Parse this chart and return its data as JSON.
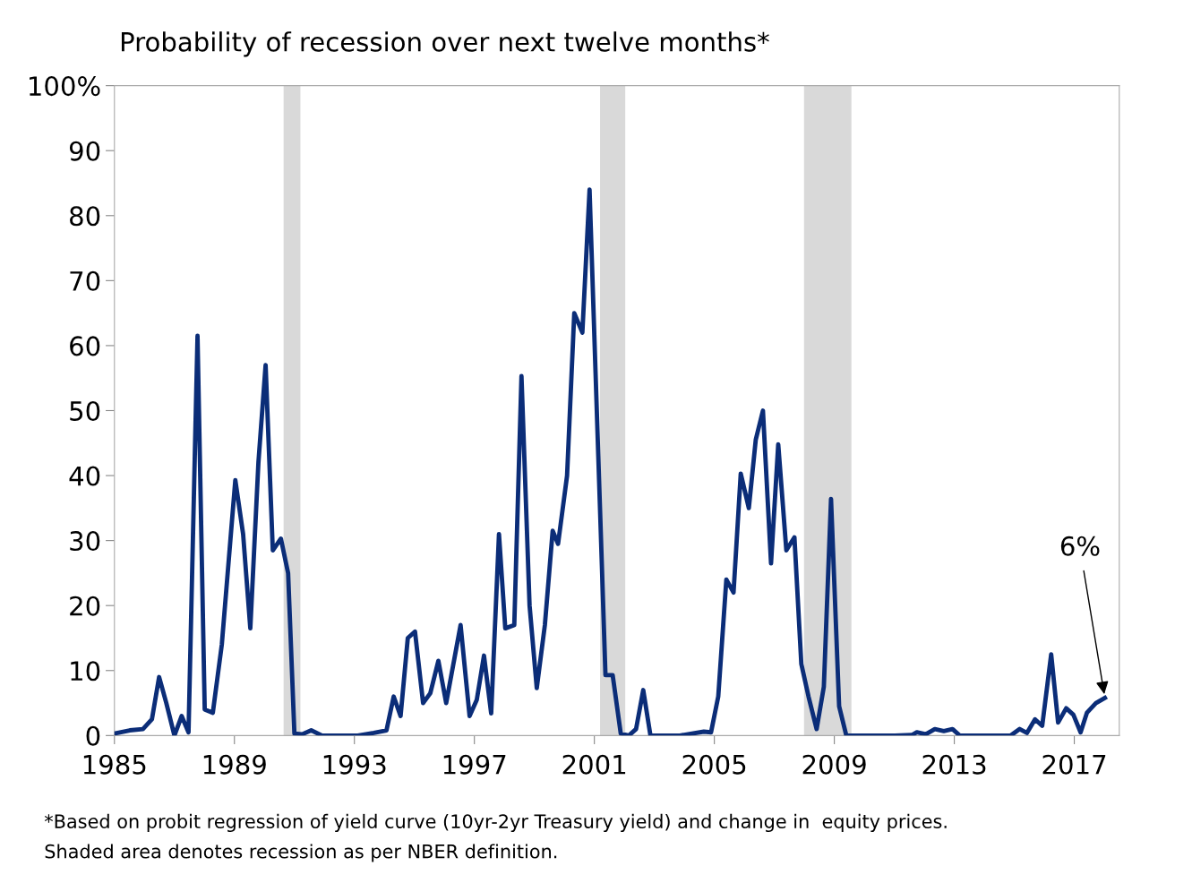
{
  "chart_data": {
    "type": "line",
    "title": "Probability of recession over next twelve months*",
    "x": [
      1985.0,
      1985.51,
      1985.95,
      1986.25,
      1986.49,
      1986.73,
      1987.0,
      1987.24,
      1987.47,
      1987.77,
      1988.01,
      1988.28,
      1988.58,
      1989.03,
      1989.29,
      1989.53,
      1989.8,
      1990.04,
      1990.28,
      1990.55,
      1990.79,
      1991.0,
      1991.26,
      1991.56,
      1991.92,
      1993.11,
      1993.65,
      1994.07,
      1994.31,
      1994.54,
      1994.78,
      1995.02,
      1995.29,
      1995.53,
      1995.8,
      1996.06,
      1996.54,
      1996.84,
      1997.08,
      1997.32,
      1997.56,
      1997.82,
      1998.03,
      1998.33,
      1998.57,
      1998.84,
      1999.08,
      1999.35,
      1999.61,
      1999.79,
      2000.09,
      2000.33,
      2000.6,
      2000.84,
      2001.37,
      2001.61,
      2001.88,
      2002.15,
      2002.39,
      2002.63,
      2002.87,
      2003.85,
      2004.65,
      2004.89,
      2005.13,
      2005.4,
      2005.64,
      2005.88,
      2006.15,
      2006.38,
      2006.62,
      2006.89,
      2007.13,
      2007.4,
      2007.67,
      2007.9,
      2008.14,
      2008.41,
      2008.65,
      2008.89,
      2009.16,
      2009.4,
      2011.01,
      2011.6,
      2011.75,
      2012.05,
      2012.35,
      2012.65,
      2012.94,
      2013.18,
      2014.88,
      2015.18,
      2015.42,
      2015.69,
      2015.93,
      2016.23,
      2016.46,
      2016.73,
      2016.97,
      2017.21,
      2017.42,
      2017.72,
      2018.02
    ],
    "series": [
      {
        "color": "#0b2d78",
        "values": [
          0.3,
          0.8,
          1,
          2.5,
          9,
          5,
          0,
          3,
          0.5,
          61.5,
          4,
          3.5,
          14,
          39.3,
          31,
          16.5,
          42,
          57,
          28.5,
          30.3,
          25,
          0.3,
          0.2,
          0.8,
          0,
          0,
          0.4,
          0.8,
          6,
          3,
          15,
          16,
          5,
          6.5,
          11.5,
          5,
          17,
          3,
          5.5,
          12.3,
          3.4,
          31,
          16.5,
          17,
          55.3,
          20,
          7.3,
          17,
          31.5,
          29.5,
          40,
          65,
          62,
          84,
          9.3,
          9.3,
          0.3,
          0,
          1,
          7,
          0,
          0,
          0.6,
          0.5,
          6,
          24,
          22,
          40.3,
          35,
          45.5,
          50,
          26.5,
          44.8,
          28.5,
          30.5,
          11,
          6,
          1,
          7.5,
          36.4,
          4.5,
          0,
          0,
          0.1,
          0.5,
          0.2,
          1,
          0.7,
          1,
          0,
          0,
          1,
          0.4,
          2.5,
          1.5,
          12.5,
          2,
          4.2,
          3.2,
          0.5,
          3.5,
          5,
          5.8
        ]
      }
    ],
    "xlim": [
      1985,
      2018.5
    ],
    "xticks": [
      1985,
      1989,
      1993,
      1997,
      2001,
      2005,
      2009,
      2013,
      2017
    ],
    "ylim": [
      0,
      100
    ],
    "yticks": [
      0,
      10,
      20,
      30,
      40,
      50,
      60,
      70,
      80,
      90,
      {
        "value": 100,
        "label": "100%"
      }
    ],
    "bands": [
      {
        "axis": "x",
        "from": 1990.64,
        "to": 1991.2,
        "color": "#d9d9d9"
      },
      {
        "axis": "x",
        "from": 2001.19,
        "to": 2002.03,
        "color": "#d9d9d9"
      },
      {
        "axis": "x",
        "from": 2007.99,
        "to": 2009.57,
        "color": "#d9d9d9"
      }
    ],
    "annotations": [
      {
        "text": "6%",
        "x": 2018.02,
        "y": 5.8
      },
      "*Based on probit regression of yield curve (10yr-2yr Treasury yield) and change in  equity prices.",
      "Shaded area denotes recession as per NBER definition."
    ],
    "grid": false,
    "legend": false,
    "marker": "none",
    "line_style": "solid"
  }
}
